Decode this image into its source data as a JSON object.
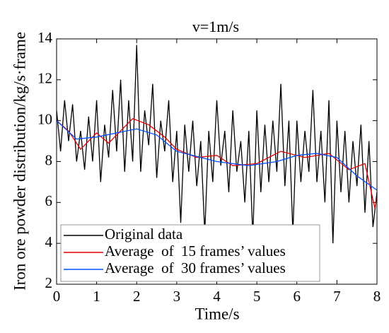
{
  "chart_data": {
    "type": "line",
    "title": "v=1m/s",
    "xlabel": "Time/s",
    "ylabel": "Iron ore powder distribution/kg/s·frame",
    "xlim": [
      0,
      8
    ],
    "ylim": [
      2,
      14
    ],
    "xticks": [
      0,
      1,
      2,
      3,
      4,
      5,
      6,
      7,
      8
    ],
    "yticks": [
      2,
      4,
      6,
      8,
      10,
      12,
      14
    ],
    "legend": "lower left",
    "series": [
      {
        "name": "Original data",
        "color": "#000000",
        "x": [
          0.0,
          0.1,
          0.2,
          0.3,
          0.4,
          0.5,
          0.6,
          0.7,
          0.8,
          0.9,
          1.0,
          1.1,
          1.2,
          1.3,
          1.4,
          1.5,
          1.6,
          1.7,
          1.8,
          1.9,
          2.0,
          2.1,
          2.2,
          2.3,
          2.4,
          2.5,
          2.6,
          2.7,
          2.8,
          2.9,
          3.0,
          3.1,
          3.2,
          3.3,
          3.4,
          3.5,
          3.6,
          3.7,
          3.8,
          3.9,
          4.0,
          4.1,
          4.2,
          4.3,
          4.4,
          4.5,
          4.6,
          4.7,
          4.8,
          4.9,
          5.0,
          5.1,
          5.2,
          5.3,
          5.4,
          5.5,
          5.6,
          5.7,
          5.8,
          5.9,
          6.0,
          6.1,
          6.2,
          6.3,
          6.4,
          6.5,
          6.6,
          6.7,
          6.8,
          6.9,
          7.0,
          7.1,
          7.2,
          7.3,
          7.4,
          7.5,
          7.6,
          7.7,
          7.8,
          7.9,
          8.0
        ],
        "values": [
          10.5,
          8.5,
          11.0,
          9.0,
          10.8,
          8.0,
          9.5,
          7.6,
          10.2,
          8.0,
          11.0,
          7.0,
          9.8,
          8.2,
          11.5,
          8.5,
          12.0,
          7.5,
          11.0,
          8.0,
          13.7,
          7.5,
          10.5,
          8.8,
          11.8,
          7.2,
          10.0,
          8.5,
          11.0,
          7.0,
          9.5,
          5.0,
          9.8,
          7.5,
          10.0,
          6.8,
          9.0,
          4.5,
          9.5,
          7.0,
          11.0,
          7.8,
          9.5,
          6.5,
          10.5,
          7.5,
          9.0,
          6.0,
          9.5,
          4.3,
          10.5,
          6.5,
          9.8,
          7.0,
          10.0,
          7.5,
          11.8,
          6.8,
          10.0,
          4.5,
          10.0,
          7.0,
          9.5,
          7.5,
          11.5,
          7.0,
          9.5,
          6.0,
          11.0,
          4.0,
          10.0,
          6.5,
          9.5,
          6.0,
          9.0,
          6.8,
          9.8,
          5.5,
          9.0,
          4.8,
          6.5
        ]
      },
      {
        "name": "Average  of  15 frames’ values",
        "color": "#e00000",
        "x": [
          0,
          0.3,
          0.6,
          1.0,
          1.3,
          1.9,
          2.3,
          2.7,
          3.0,
          3.5,
          4.0,
          4.4,
          5.0,
          5.6,
          6.2,
          6.8,
          7.3,
          7.7,
          7.95,
          8
        ],
        "values": [
          10.0,
          9.5,
          8.6,
          9.4,
          8.9,
          10.1,
          9.8,
          9.2,
          8.6,
          8.2,
          8.3,
          7.8,
          7.9,
          8.5,
          8.2,
          8.4,
          7.6,
          7.9,
          5.7,
          6.3
        ]
      },
      {
        "name": "Average  of  30 frames’ values",
        "color": "#0050ff",
        "x": [
          0,
          0.5,
          1.0,
          2.0,
          2.5,
          3.0,
          4.0,
          4.8,
          5.5,
          6.0,
          6.5,
          7.0,
          7.5,
          8.0
        ],
        "values": [
          10.0,
          9.1,
          9.2,
          9.6,
          9.3,
          8.5,
          8.0,
          7.8,
          8.0,
          8.3,
          8.4,
          8.2,
          7.3,
          6.6
        ]
      }
    ]
  }
}
